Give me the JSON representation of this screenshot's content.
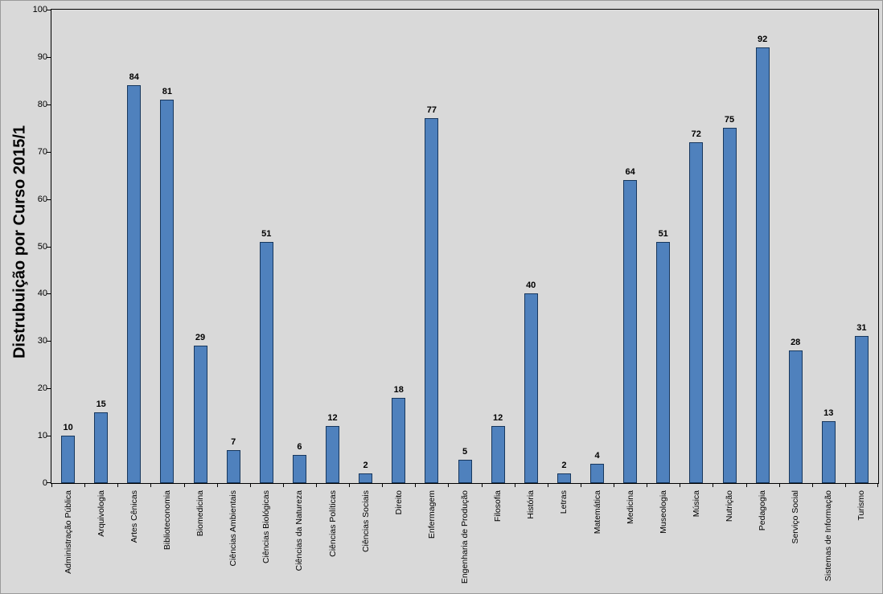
{
  "chart_data": {
    "type": "bar",
    "title": "Distrubuição por Curso 2015/1",
    "categories": [
      "Administração Pública",
      "Arquivologia",
      "Artes Cênicas",
      "Biblioteconomia",
      "Biomedicina",
      "Ciências Ambientais",
      "Ciências Biológicas",
      "Ciências da Natureza",
      "Ciências Políticas",
      "Ciências Sociais",
      "Direito",
      "Enfermagem",
      "Engenharia de Produção",
      "Filosofia",
      "História",
      "Letras",
      "Matemática",
      "Medicina",
      "Museologia",
      "Música",
      "Nutrição",
      "Pedagogia",
      "Serviço Social",
      "Sistemas de Informação",
      "Turismo"
    ],
    "values": [
      10,
      15,
      84,
      81,
      29,
      7,
      51,
      6,
      12,
      2,
      18,
      77,
      5,
      12,
      40,
      2,
      4,
      64,
      51,
      72,
      75,
      92,
      28,
      13,
      31
    ],
    "xlabel": "",
    "ylabel": "Distrubuição por Curso 2015/1",
    "ylim": [
      0,
      100
    ],
    "yticks": [
      0,
      10,
      20,
      30,
      40,
      50,
      60,
      70,
      80,
      90,
      100
    ],
    "grid": false,
    "legend": "none",
    "data_labels": true,
    "bar_color": "#4F81BD",
    "bar_border_color": "#17375D",
    "plot_background_color": "#D9D9D9",
    "axis_color": "#000000"
  }
}
